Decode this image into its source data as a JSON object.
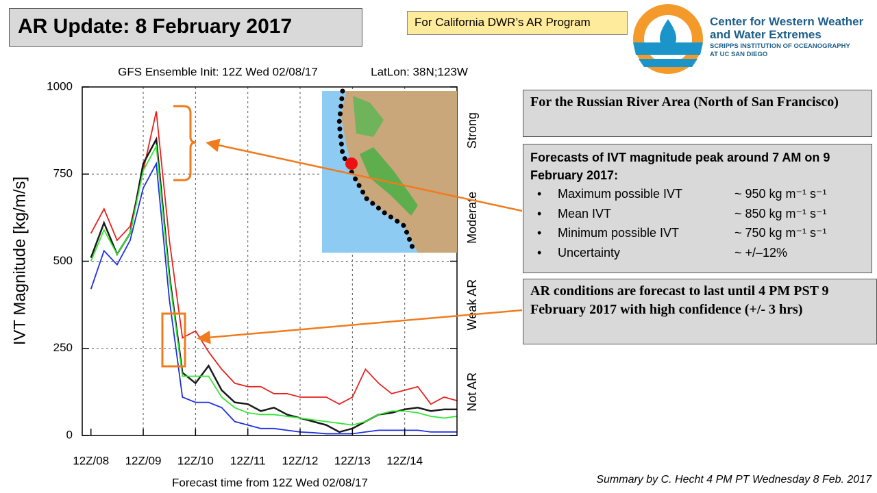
{
  "slide": {
    "title": "AR Update: 8 February 2017",
    "banner": "For California DWR’s AR Program",
    "logo": {
      "line1": "Center for Western Weather",
      "line2": "and Water Extremes",
      "line3": "SCRIPPS INSTITUTION OF OCEANOGRAPHY",
      "line4": "AT UC SAN DIEGO"
    },
    "area_box": "For the Russian River Area (North of San Francisco)",
    "forecast_box": {
      "heading": "Forecasts of IVT magnitude peak around 7 AM on 9 February 2017:",
      "items": [
        {
          "label": "Maximum possible IVT",
          "value": "~ 950 kg m⁻¹ s⁻¹"
        },
        {
          "label": "Mean IVT",
          "value": "~ 850 kg m⁻¹ s⁻¹"
        },
        {
          "label": "Minimum possible IVT",
          "value": "~ 750 kg m⁻¹ s⁻¹"
        },
        {
          "label": "Uncertainty",
          "value": "~ +/–12%"
        }
      ]
    },
    "duration_box": "AR conditions are forecast to last until 4 PM PST 9 February 2017 with high confidence (+/- 3 hrs)",
    "footer": "Summary by C. Hecht 4 PM PT Wednesday 8 Feb. 2017"
  },
  "chart_data": {
    "type": "line",
    "title": "GFS Ensemble Init: 12Z Wed 02/08/17",
    "subtitle": "LatLon: 38N;123W",
    "x_label": "Forecast time from 12Z Wed 02/08/17",
    "y_label": "IVT Magnitude [kg/m/s]",
    "x": [
      0,
      6,
      12,
      18,
      24,
      30,
      36,
      42,
      48,
      54,
      60,
      66,
      72,
      78,
      84,
      90,
      96,
      102,
      108,
      114,
      120,
      126,
      132,
      138,
      144,
      150,
      156,
      162,
      168
    ],
    "series": [
      {
        "color": "#e8201c",
        "values": [
          580,
          650,
          560,
          600,
          760,
          930,
          560,
          280,
          300,
          240,
          190,
          150,
          140,
          140,
          120,
          120,
          110,
          110,
          110,
          90,
          110,
          190,
          150,
          120,
          130,
          140,
          90,
          110,
          100
        ]
      },
      {
        "color": "#1a1a1a",
        "values": [
          510,
          610,
          520,
          580,
          780,
          850,
          460,
          180,
          150,
          200,
          130,
          95,
          90,
          70,
          80,
          60,
          50,
          40,
          30,
          10,
          20,
          40,
          60,
          65,
          75,
          80,
          70,
          75,
          75
        ]
      },
      {
        "color": "#33e633",
        "values": [
          500,
          590,
          520,
          580,
          760,
          830,
          450,
          170,
          170,
          170,
          110,
          80,
          65,
          60,
          60,
          55,
          50,
          45,
          40,
          35,
          30,
          40,
          60,
          70,
          70,
          65,
          55,
          50,
          55
        ]
      },
      {
        "color": "#1f2ee0",
        "values": [
          420,
          530,
          490,
          560,
          710,
          780,
          390,
          110,
          95,
          95,
          80,
          40,
          30,
          20,
          20,
          15,
          10,
          8,
          5,
          5,
          5,
          10,
          15,
          15,
          15,
          15,
          10,
          10,
          10
        ]
      }
    ],
    "xlim": [
      -4,
      168
    ],
    "xticks": [
      {
        "value": 0,
        "label": "12Z/08"
      },
      {
        "value": 24,
        "label": "12Z/09"
      },
      {
        "value": 48,
        "label": "12Z/10"
      },
      {
        "value": 72,
        "label": "12Z/11"
      },
      {
        "value": 96,
        "label": "12Z/12"
      },
      {
        "value": 120,
        "label": "12Z/13"
      },
      {
        "value": 144,
        "label": "12Z/14"
      }
    ],
    "ylim": [
      0,
      1000
    ],
    "yticks": [
      0,
      250,
      500,
      750,
      1000
    ],
    "strength_bands": [
      "Not AR",
      "Weak AR",
      "Moderate",
      "Strong"
    ],
    "grid": true
  }
}
